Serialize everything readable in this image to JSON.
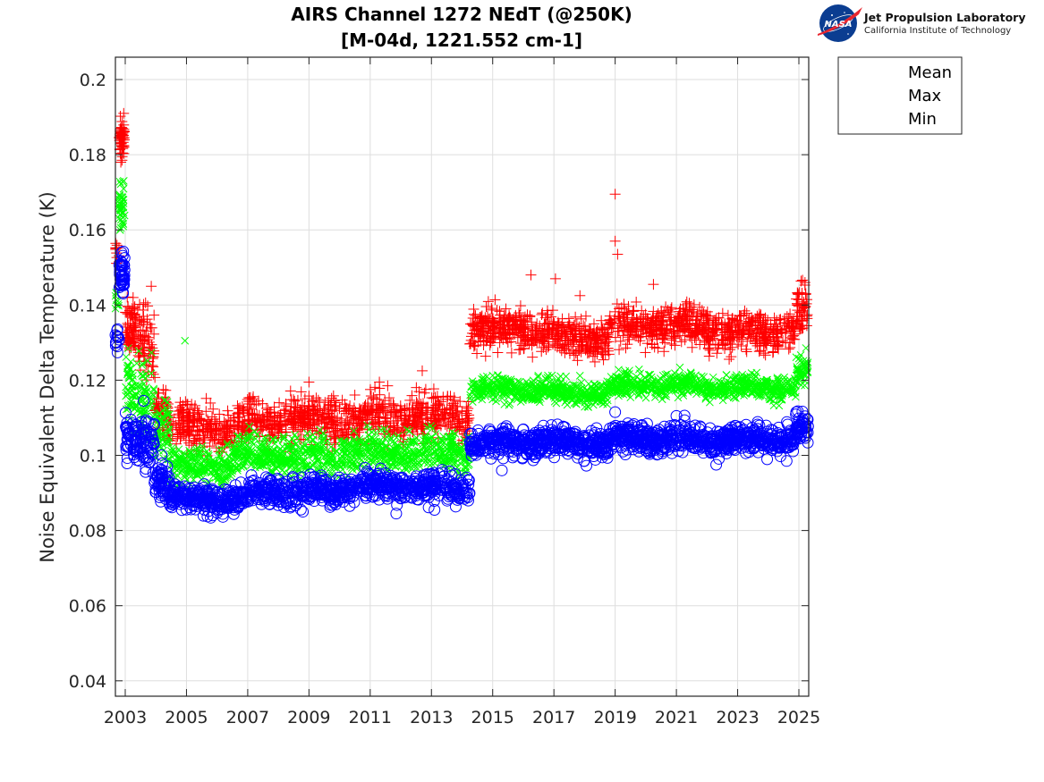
{
  "logo": {
    "nasa_text": "NASA",
    "org_name": "Jet Propulsion Laboratory",
    "org_sub": "California Institute of Technology"
  },
  "chart_data": {
    "type": "scatter",
    "title_line1": "AIRS Channel 1272 NEdT (@250K)",
    "title_line2": "[M-04d, 1221.552 cm-1]",
    "xlabel": "",
    "ylabel": "Noise Equivalent Delta Temperature (K)",
    "xlim": [
      2002.7,
      2025.35
    ],
    "ylim": [
      0.036,
      0.206
    ],
    "grid": true,
    "legend_position": "outside-top-right",
    "x_ticks": [
      2003,
      2005,
      2007,
      2009,
      2011,
      2013,
      2015,
      2017,
      2019,
      2021,
      2023,
      2025
    ],
    "x_tick_labels": [
      "2003",
      "2005",
      "2007",
      "2009",
      "2011",
      "2013",
      "2015",
      "2017",
      "2019",
      "2021",
      "2023",
      "2025"
    ],
    "y_ticks": [
      0.04,
      0.06,
      0.08,
      0.1,
      0.12,
      0.14,
      0.16,
      0.18,
      0.2
    ],
    "y_tick_labels": [
      "0.04",
      "0.06",
      "0.08",
      "0.1",
      "0.12",
      "0.14",
      "0.16",
      "0.18",
      "0.2"
    ],
    "series": [
      {
        "name": "Mean",
        "marker": "x",
        "color": "#00ff00",
        "segments": [
          {
            "x_start": 2002.67,
            "x_end": 2002.8,
            "center": 0.141,
            "spread": 0.001,
            "count": 10
          },
          {
            "x_start": 2002.8,
            "x_end": 2002.98,
            "center": 0.166,
            "spread": 0.003,
            "count": 40
          },
          {
            "x_start": 2003.0,
            "x_end": 2003.95,
            "center": 0.116,
            "spread": 0.005,
            "count": 120
          },
          {
            "x_start": 2003.95,
            "x_end": 2004.45,
            "center": 0.107,
            "spread": 0.004,
            "count": 60
          },
          {
            "x_start": 2004.45,
            "x_end": 2006.5,
            "center": 0.097,
            "spread": 0.0025,
            "count": 220
          },
          {
            "x_start": 2006.5,
            "x_end": 2010.0,
            "center": 0.1,
            "spread": 0.0025,
            "count": 380
          },
          {
            "x_start": 2010.0,
            "x_end": 2014.25,
            "center": 0.101,
            "spread": 0.0025,
            "count": 450
          },
          {
            "x_start": 2014.25,
            "x_end": 2017.0,
            "center": 0.1175,
            "spread": 0.0015,
            "count": 300
          },
          {
            "x_start": 2017.0,
            "x_end": 2018.8,
            "center": 0.1165,
            "spread": 0.0015,
            "count": 200
          },
          {
            "x_start": 2018.8,
            "x_end": 2022.0,
            "center": 0.1185,
            "spread": 0.0015,
            "count": 340
          },
          {
            "x_start": 2022.0,
            "x_end": 2024.9,
            "center": 0.118,
            "spread": 0.0015,
            "count": 300
          },
          {
            "x_start": 2024.9,
            "x_end": 2025.3,
            "center": 0.122,
            "spread": 0.002,
            "count": 50
          }
        ],
        "outliers": [
          [
            2004.95,
            0.1305
          ],
          [
            2003.55,
            0.124
          ],
          [
            2017.85,
            0.1212
          ],
          [
            2024.95,
            0.1195
          ]
        ]
      },
      {
        "name": "Max",
        "marker": "+",
        "color": "#ff0000",
        "segments": [
          {
            "x_start": 2002.67,
            "x_end": 2002.8,
            "center": 0.153,
            "spread": 0.002,
            "count": 15
          },
          {
            "x_start": 2002.8,
            "x_end": 2002.98,
            "center": 0.183,
            "spread": 0.003,
            "count": 60
          },
          {
            "x_start": 2003.0,
            "x_end": 2003.3,
            "center": 0.132,
            "spread": 0.004,
            "count": 60
          },
          {
            "x_start": 2003.3,
            "x_end": 2003.95,
            "center": 0.132,
            "spread": 0.005,
            "count": 80
          },
          {
            "x_start": 2003.95,
            "x_end": 2004.45,
            "center": 0.113,
            "spread": 0.004,
            "count": 60
          },
          {
            "x_start": 2004.45,
            "x_end": 2007.0,
            "center": 0.1075,
            "spread": 0.003,
            "count": 260
          },
          {
            "x_start": 2007.0,
            "x_end": 2010.0,
            "center": 0.1095,
            "spread": 0.003,
            "count": 320
          },
          {
            "x_start": 2010.0,
            "x_end": 2014.25,
            "center": 0.11,
            "spread": 0.003,
            "count": 420
          },
          {
            "x_start": 2014.25,
            "x_end": 2017.0,
            "center": 0.1335,
            "spread": 0.0025,
            "count": 320
          },
          {
            "x_start": 2017.0,
            "x_end": 2018.8,
            "center": 0.131,
            "spread": 0.0025,
            "count": 200
          },
          {
            "x_start": 2018.8,
            "x_end": 2022.0,
            "center": 0.1345,
            "spread": 0.0025,
            "count": 340
          },
          {
            "x_start": 2022.0,
            "x_end": 2024.9,
            "center": 0.133,
            "spread": 0.0025,
            "count": 300
          },
          {
            "x_start": 2024.9,
            "x_end": 2025.3,
            "center": 0.1385,
            "spread": 0.003,
            "count": 50
          }
        ],
        "outliers": [
          [
            2002.95,
            0.191
          ],
          [
            2003.85,
            0.145
          ],
          [
            2016.25,
            0.148
          ],
          [
            2017.05,
            0.147
          ],
          [
            2019.0,
            0.1695
          ],
          [
            2019.0,
            0.157
          ],
          [
            2019.08,
            0.1535
          ],
          [
            2020.25,
            0.1455
          ],
          [
            2017.85,
            0.1425
          ],
          [
            2012.7,
            0.1225
          ],
          [
            2009.0,
            0.1195
          ],
          [
            2011.3,
            0.1195
          ],
          [
            2025.2,
            0.146
          ]
        ]
      },
      {
        "name": "Min",
        "marker": "o",
        "color": "#0000ff",
        "segments": [
          {
            "x_start": 2002.67,
            "x_end": 2002.8,
            "center": 0.13,
            "spread": 0.002,
            "count": 15
          },
          {
            "x_start": 2002.8,
            "x_end": 2002.98,
            "center": 0.148,
            "spread": 0.003,
            "count": 50
          },
          {
            "x_start": 2003.0,
            "x_end": 2003.95,
            "center": 0.104,
            "spread": 0.0035,
            "count": 110
          },
          {
            "x_start": 2003.95,
            "x_end": 2004.45,
            "center": 0.094,
            "spread": 0.003,
            "count": 60
          },
          {
            "x_start": 2004.45,
            "x_end": 2007.0,
            "center": 0.0885,
            "spread": 0.0018,
            "count": 250
          },
          {
            "x_start": 2007.0,
            "x_end": 2010.0,
            "center": 0.0905,
            "spread": 0.0018,
            "count": 300
          },
          {
            "x_start": 2010.0,
            "x_end": 2014.25,
            "center": 0.0915,
            "spread": 0.0018,
            "count": 400
          },
          {
            "x_start": 2014.25,
            "x_end": 2017.0,
            "center": 0.1035,
            "spread": 0.0018,
            "count": 300
          },
          {
            "x_start": 2017.0,
            "x_end": 2018.8,
            "center": 0.103,
            "spread": 0.0018,
            "count": 200
          },
          {
            "x_start": 2018.8,
            "x_end": 2022.0,
            "center": 0.1045,
            "spread": 0.0018,
            "count": 340
          },
          {
            "x_start": 2022.0,
            "x_end": 2024.9,
            "center": 0.104,
            "spread": 0.0018,
            "count": 300
          },
          {
            "x_start": 2024.9,
            "x_end": 2025.3,
            "center": 0.107,
            "spread": 0.002,
            "count": 50
          }
        ],
        "outliers": [
          [
            2003.6,
            0.1145
          ],
          [
            2015.3,
            0.096
          ],
          [
            2019.0,
            0.1115
          ],
          [
            2021.0,
            0.1105
          ],
          [
            2022.3,
            0.0975
          ],
          [
            2024.6,
            0.0985
          ],
          [
            2011.85,
            0.0845
          ],
          [
            2008.8,
            0.085
          ],
          [
            2013.1,
            0.0855
          ]
        ]
      }
    ]
  }
}
